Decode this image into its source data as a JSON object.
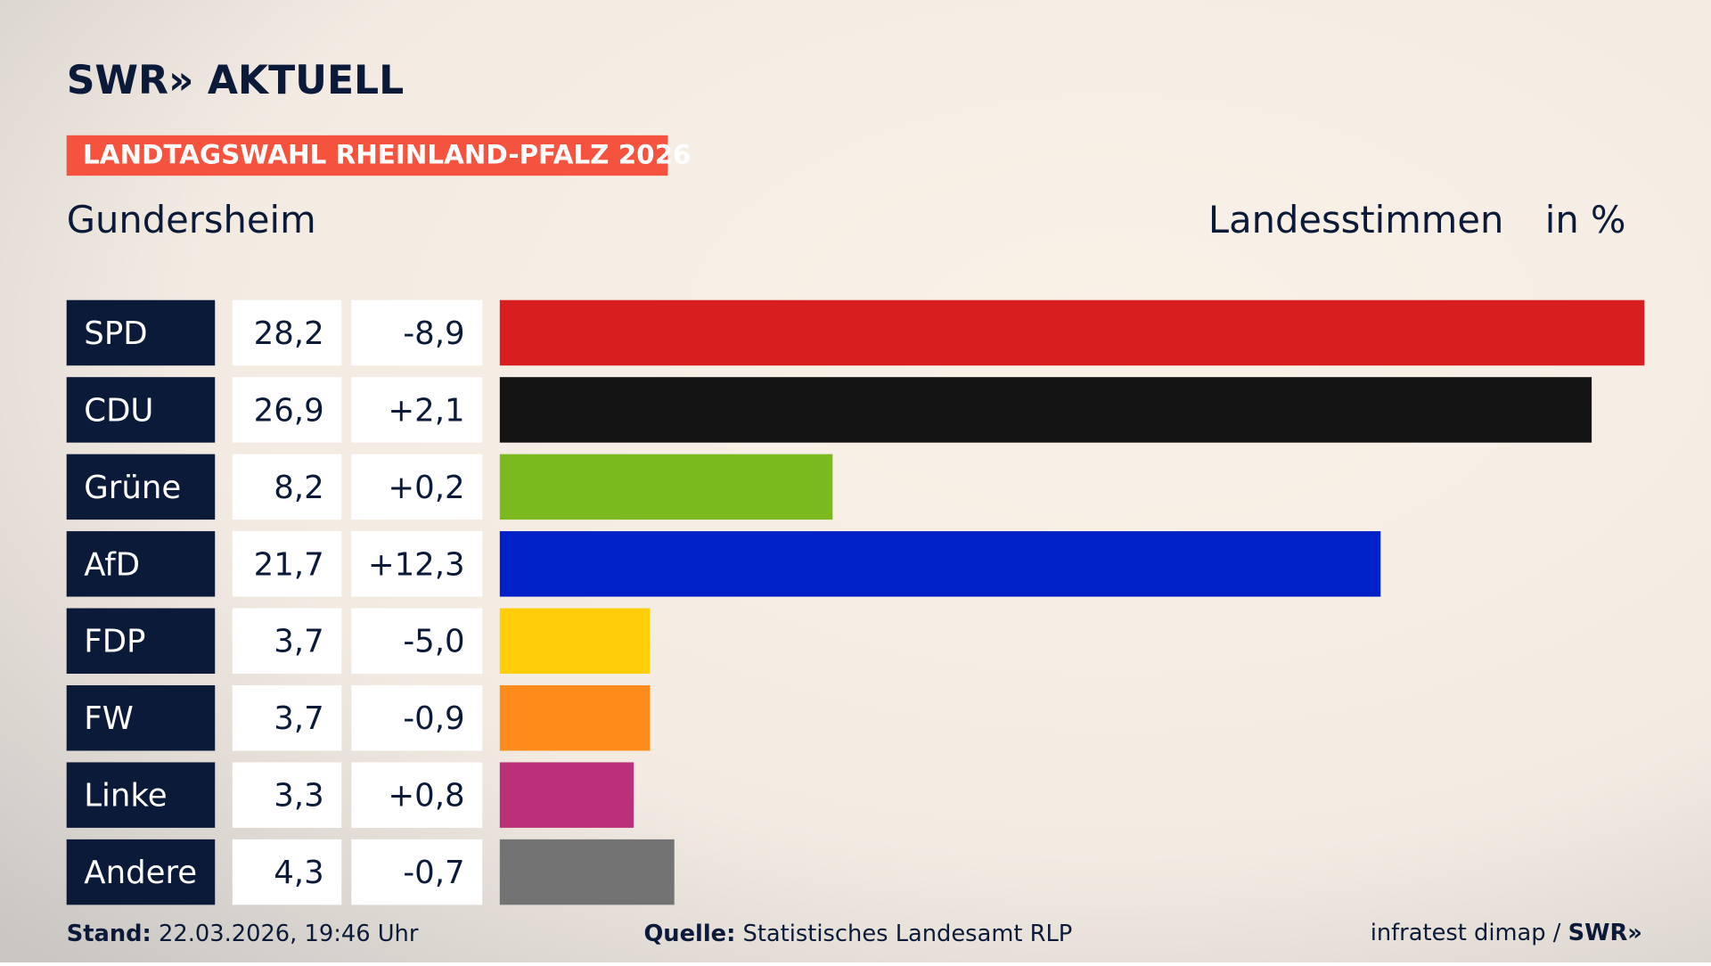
{
  "header": {
    "logo": "SWR» AKTUELL",
    "tag": "LANDTAGSWAHL RHEINLAND-PFALZ 2026",
    "place": "Gundersheim",
    "measure": "Landesstimmen",
    "unit": "in %"
  },
  "chart_data": {
    "type": "bar",
    "categories": [
      "SPD",
      "CDU",
      "Grüne",
      "AfD",
      "FDP",
      "FW",
      "Linke",
      "Andere"
    ],
    "values": [
      28.2,
      26.9,
      8.2,
      21.7,
      3.7,
      3.7,
      3.3,
      4.3
    ],
    "value_labels": [
      "28,2",
      "26,9",
      "8,2",
      "21,7",
      "3,7",
      "3,7",
      "3,3",
      "4,3"
    ],
    "changes": [
      -8.9,
      2.1,
      0.2,
      12.3,
      -5.0,
      -0.9,
      0.8,
      -0.7
    ],
    "change_labels": [
      "-8,9",
      "+2,1",
      "+0,2",
      "+12,3",
      "-5,0",
      "-0,9",
      "+0,8",
      "-0,7"
    ],
    "colors": [
      "#d71f1f",
      "#141414",
      "#7aba1e",
      "#0021c8",
      "#ffcd0a",
      "#ff8c1a",
      "#bb3077",
      "#737373"
    ],
    "xlim": [
      0,
      28.2
    ]
  },
  "footer": {
    "stand_label": "Stand:",
    "stand": "22.03.2026, 19:46 Uhr",
    "source_label": "Quelle:",
    "source": "Statistisches Landesamt RLP",
    "credit": "infratest dimap / ",
    "credit_logo": "SWR»"
  }
}
